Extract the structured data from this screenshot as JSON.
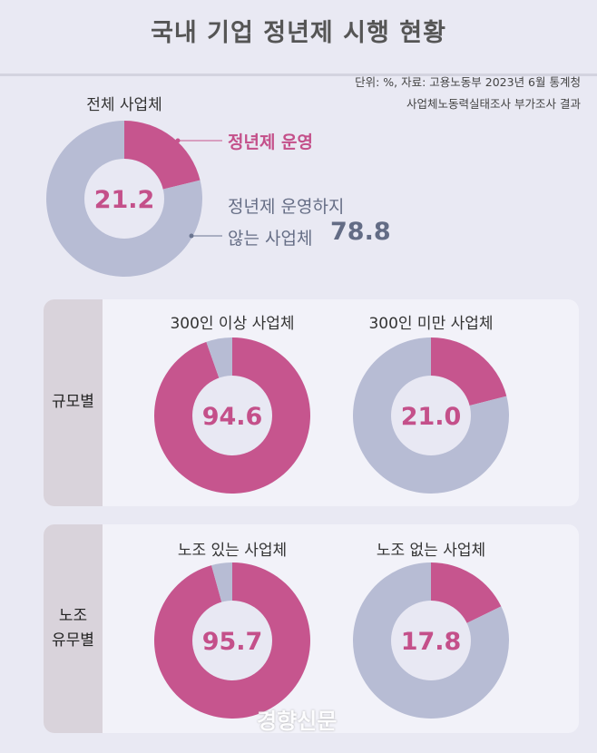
{
  "title": "국내 기업 정년제 시행 현황",
  "source_line1": "단위: %, 자료: 고용노동부 2023년 6월 통계청",
  "source_line2": "사업체노동력실태조사 부가조사 결과",
  "colors": {
    "operating": "#c6558e",
    "not_operating": "#b7bcd4",
    "inner": "#e8e8f3"
  },
  "annotations": {
    "operating": "정년제 운영",
    "not_operating_line1": "정년제 운영하지",
    "not_operating_line2": "않는 사업체",
    "not_operating_value": "78.8"
  },
  "panels": [
    {
      "label": "규모별"
    },
    {
      "label_line1": "노조",
      "label_line2": "유무별"
    }
  ],
  "watermark": "경향신문",
  "chart_data": [
    {
      "type": "pie",
      "title": "전체 사업체",
      "categories": [
        "정년제 운영",
        "정년제 운영하지 않는 사업체"
      ],
      "values": [
        21.2,
        78.8
      ],
      "center_label": "21.2"
    },
    {
      "type": "pie",
      "title": "300인 이상 사업체",
      "values": [
        94.6,
        5.4
      ],
      "center_label": "94.6"
    },
    {
      "type": "pie",
      "title": "300인 미만 사업체",
      "values": [
        21.0,
        79.0
      ],
      "center_label": "21.0"
    },
    {
      "type": "pie",
      "title": "노조 있는 사업체",
      "values": [
        95.7,
        4.3
      ],
      "center_label": "95.7"
    },
    {
      "type": "pie",
      "title": "노조 없는 사업체",
      "values": [
        17.8,
        82.2
      ],
      "center_label": "17.8"
    }
  ]
}
